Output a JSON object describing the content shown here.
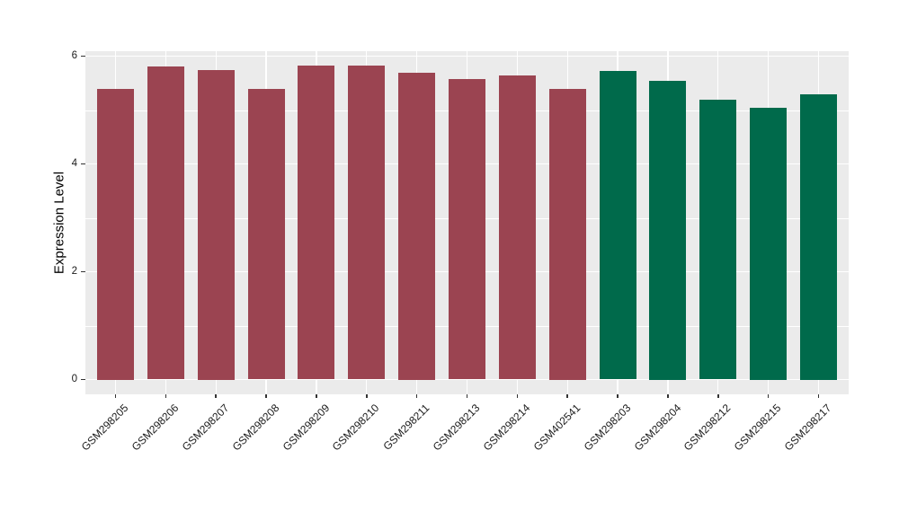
{
  "chart_data": {
    "type": "bar",
    "title": "",
    "xlabel": "",
    "ylabel": "Expression Level",
    "categories": [
      "GSM298205",
      "GSM298206",
      "GSM298207",
      "GSM298208",
      "GSM298209",
      "GSM298210",
      "GSM298211",
      "GSM298213",
      "GSM298214",
      "GSM402541",
      "GSM298203",
      "GSM298204",
      "GSM298212",
      "GSM298215",
      "GSM298217"
    ],
    "values": [
      5.4,
      5.81,
      5.75,
      5.39,
      5.82,
      5.82,
      5.7,
      5.58,
      5.64,
      5.4,
      5.72,
      5.55,
      5.19,
      5.05,
      5.3
    ],
    "bar_colors": [
      "#9B4451",
      "#9B4451",
      "#9B4451",
      "#9B4451",
      "#9B4451",
      "#9B4451",
      "#9B4451",
      "#9B4451",
      "#9B4451",
      "#9B4451",
      "#006A4B",
      "#006A4B",
      "#006A4B",
      "#006A4B",
      "#006A4B"
    ],
    "group_colors": {
      "maroon_group": "#9B4451",
      "green_group": "#006A4B"
    },
    "ylim": [
      0,
      6.1
    ],
    "yticks": [
      0,
      2,
      4,
      6
    ],
    "ytick_labels": [
      "0",
      "2",
      "4",
      "6"
    ],
    "minor_yticks": [
      1,
      3,
      5
    ],
    "grid": true,
    "legend": "none",
    "panel_background": "#EBEBEB",
    "gridline_color": "#FFFFFF",
    "axis_text_color": "#1a1a1a"
  }
}
